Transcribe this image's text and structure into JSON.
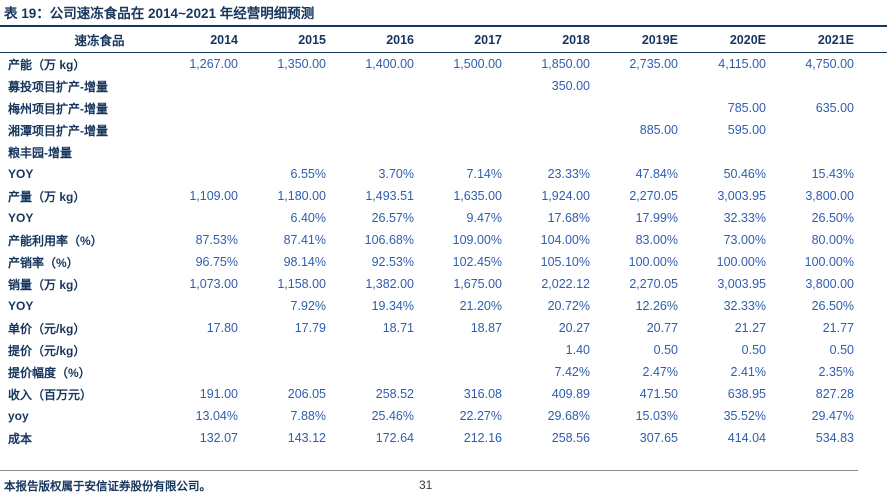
{
  "title": "表 19：公司速冻食品在 2014~2021 年经营明细预测",
  "table": {
    "corner_label": "速冻食品",
    "years": [
      "2014",
      "2015",
      "2016",
      "2017",
      "2018",
      "2019E",
      "2020E",
      "2021E"
    ],
    "rows": [
      {
        "label": "产能（万 kg）",
        "values": [
          "1,267.00",
          "1,350.00",
          "1,400.00",
          "1,500.00",
          "1,850.00",
          "2,735.00",
          "4,115.00",
          "4,750.00"
        ]
      },
      {
        "label": "募投项目扩产-增量",
        "values": [
          "",
          "",
          "",
          "",
          "350.00",
          "",
          "",
          ""
        ]
      },
      {
        "label": "梅州项目扩产-增量",
        "values": [
          "",
          "",
          "",
          "",
          "",
          "",
          "785.00",
          "635.00"
        ]
      },
      {
        "label": "湘潭项目扩产-增量",
        "values": [
          "",
          "",
          "",
          "",
          "",
          "885.00",
          "595.00",
          ""
        ]
      },
      {
        "label": "粮丰园-增量",
        "values": [
          "",
          "",
          "",
          "",
          "",
          "",
          "",
          ""
        ]
      },
      {
        "label": "YOY",
        "values": [
          "",
          "6.55%",
          "3.70%",
          "7.14%",
          "23.33%",
          "47.84%",
          "50.46%",
          "15.43%"
        ]
      },
      {
        "label": "产量（万 kg）",
        "values": [
          "1,109.00",
          "1,180.00",
          "1,493.51",
          "1,635.00",
          "1,924.00",
          "2,270.05",
          "3,003.95",
          "3,800.00"
        ]
      },
      {
        "label": "YOY",
        "values": [
          "",
          "6.40%",
          "26.57%",
          "9.47%",
          "17.68%",
          "17.99%",
          "32.33%",
          "26.50%"
        ]
      },
      {
        "label": "产能利用率（%）",
        "values": [
          "87.53%",
          "87.41%",
          "106.68%",
          "109.00%",
          "104.00%",
          "83.00%",
          "73.00%",
          "80.00%"
        ]
      },
      {
        "label": "产销率（%）",
        "values": [
          "96.75%",
          "98.14%",
          "92.53%",
          "102.45%",
          "105.10%",
          "100.00%",
          "100.00%",
          "100.00%"
        ]
      },
      {
        "label": "销量（万 kg）",
        "values": [
          "1,073.00",
          "1,158.00",
          "1,382.00",
          "1,675.00",
          "2,022.12",
          "2,270.05",
          "3,003.95",
          "3,800.00"
        ]
      },
      {
        "label": "YOY",
        "values": [
          "",
          "7.92%",
          "19.34%",
          "21.20%",
          "20.72%",
          "12.26%",
          "32.33%",
          "26.50%"
        ]
      },
      {
        "label": "单价（元/kg）",
        "values": [
          "17.80",
          "17.79",
          "18.71",
          "18.87",
          "20.27",
          "20.77",
          "21.27",
          "21.77"
        ]
      },
      {
        "label": "提价（元/kg）",
        "values": [
          "",
          "",
          "",
          "",
          "1.40",
          "0.50",
          "0.50",
          "0.50"
        ]
      },
      {
        "label": "提价幅度（%）",
        "values": [
          "",
          "",
          "",
          "",
          "7.42%",
          "2.47%",
          "2.41%",
          "2.35%"
        ]
      },
      {
        "label": "收入（百万元）",
        "values": [
          "191.00",
          "206.05",
          "258.52",
          "316.08",
          "409.89",
          "471.50",
          "638.95",
          "827.28"
        ]
      },
      {
        "label": "yoy",
        "values": [
          "13.04%",
          "7.88%",
          "25.46%",
          "22.27%",
          "29.68%",
          "15.03%",
          "35.52%",
          "29.47%"
        ]
      },
      {
        "label": "成本",
        "values": [
          "132.07",
          "143.12",
          "172.64",
          "212.16",
          "258.56",
          "307.65",
          "414.04",
          "534.83"
        ]
      }
    ]
  },
  "footer": {
    "copyright": "本报告版权属于安信证券股份有限公司。",
    "page_number": "31"
  },
  "colors": {
    "navy": "#17365D",
    "value_blue": "#2F5EAE",
    "rule_gray": "#8C8C8C"
  }
}
